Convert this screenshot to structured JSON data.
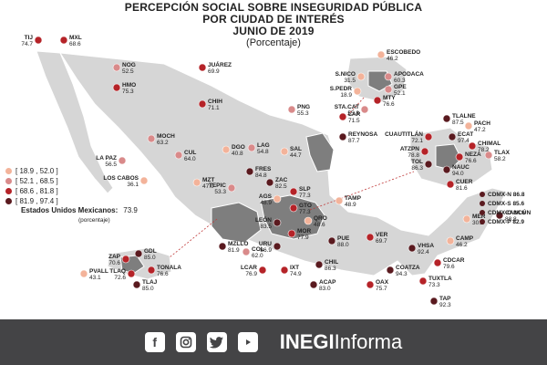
{
  "title": {
    "line1": "PERCEPCIÓN SOCIAL SOBRE INSEGURIDAD PÚBLICA",
    "line2": "POR CIUDAD DE INTERÉS",
    "line3": "JUNIO DE 2019",
    "line4": "(Porcentaje)"
  },
  "colors": {
    "c1": "#f3b39a",
    "c2": "#d98a8a",
    "c3": "#b52328",
    "c4": "#5a1a1f",
    "land": "#d6d6d6",
    "region": "#7e7e7e",
    "footer": "#444446"
  },
  "legend": [
    {
      "label": "[ 18.9 , 52.0 ]",
      "color": "#f3b39a"
    },
    {
      "label": "[ 52.1 , 68.5 ]",
      "color": "#d98a8a"
    },
    {
      "label": "[ 68.6 , 81.8 ]",
      "color": "#b52328"
    },
    {
      "label": "[ 81.9 , 97.4 ]",
      "color": "#5a1a1f"
    }
  ],
  "national": {
    "label": "Estados Unidos Mexicanos:",
    "value": "73.9",
    "unit": "(porcentaje)"
  },
  "cities": [
    {
      "name": "TIJ",
      "value": "74.7"
    },
    {
      "name": "MXL",
      "value": "68.6"
    },
    {
      "name": "NOG",
      "value": "52.5"
    },
    {
      "name": "HMO",
      "value": "75.3"
    },
    {
      "name": "JUÁREZ",
      "value": "69.9"
    },
    {
      "name": "CHIH",
      "value": "71.1"
    },
    {
      "name": "MOCH",
      "value": "63.2"
    },
    {
      "name": "LA PAZ",
      "value": "56.5"
    },
    {
      "name": "LOS CABOS",
      "value": "36.1"
    },
    {
      "name": "CUL",
      "value": "64.0"
    },
    {
      "name": "MZT",
      "value": "47.0"
    },
    {
      "name": "DGO",
      "value": "40.8"
    },
    {
      "name": "LAG",
      "value": "54.8"
    },
    {
      "name": "SAL",
      "value": "44.7"
    },
    {
      "name": "PNG",
      "value": "55.3"
    },
    {
      "name": "LAR",
      "value": "71.5"
    },
    {
      "name": "REYNOSA",
      "value": "87.7"
    },
    {
      "name": "FRES",
      "value": "84.8"
    },
    {
      "name": "ZAC",
      "value": "82.5"
    },
    {
      "name": "AGS",
      "value": "48.9"
    },
    {
      "name": "TEPIC",
      "value": "53.3"
    },
    {
      "name": "SLP",
      "value": "77.3"
    },
    {
      "name": "GTO",
      "value": "77.3"
    },
    {
      "name": "LEÓN",
      "value": "83.5"
    },
    {
      "name": "QRO",
      "value": "48.6"
    },
    {
      "name": "MOR",
      "value": "77.9"
    },
    {
      "name": "URU",
      "value": "86.9"
    },
    {
      "name": "TAMP",
      "value": "48.9"
    },
    {
      "name": "MZLLO",
      "value": "81.9"
    },
    {
      "name": "COL",
      "value": "62.0"
    },
    {
      "name": "LCAR",
      "value": "76.9"
    },
    {
      "name": "IXT",
      "value": "74.9"
    },
    {
      "name": "ACAP",
      "value": "83.0"
    },
    {
      "name": "CHIL",
      "value": "86.3"
    },
    {
      "name": "PUE",
      "value": "88.0"
    },
    {
      "name": "VER",
      "value": "69.7"
    },
    {
      "name": "OAX",
      "value": "75.7"
    },
    {
      "name": "COATZA",
      "value": "94.3"
    },
    {
      "name": "VHSA",
      "value": "92.4"
    },
    {
      "name": "CDCAR",
      "value": "79.6"
    },
    {
      "name": "TUXTLA",
      "value": "73.3"
    },
    {
      "name": "TAP",
      "value": "92.3"
    },
    {
      "name": "CAMP",
      "value": "46.2"
    },
    {
      "name": "MER",
      "value": "30.2"
    },
    {
      "name": "CANCÚN",
      "value": "88.8"
    },
    {
      "name": "PVALL",
      "value": "43.1"
    },
    {
      "name": "ZAP",
      "value": "70.6"
    },
    {
      "name": "GDL",
      "value": "85.0"
    },
    {
      "name": "TLAQ",
      "value": "72.6"
    },
    {
      "name": "TONALA",
      "value": "76.6"
    },
    {
      "name": "TLAJ",
      "value": "85.0"
    },
    {
      "name": "ESCOBEDO",
      "value": "46.2"
    },
    {
      "name": "S.NICO",
      "value": "31.5"
    },
    {
      "name": "APODACA",
      "value": "60.3"
    },
    {
      "name": "GPE",
      "value": "52.1"
    },
    {
      "name": "S.PEDR",
      "value": "18.9"
    },
    {
      "name": "MTY",
      "value": "76.6"
    },
    {
      "name": "STA.CAT",
      "value": "55.3"
    },
    {
      "name": "TLALNE",
      "value": "87.5"
    },
    {
      "name": "PACH",
      "value": "47.2"
    },
    {
      "name": "CUAUTITLÁN",
      "value": "72.1"
    },
    {
      "name": "ECAT",
      "value": "97.4"
    },
    {
      "name": "ATZPN",
      "value": "78.8"
    },
    {
      "name": "CHIMAL",
      "value": "78.2"
    },
    {
      "name": "NEZA",
      "value": "76.6"
    },
    {
      "name": "TOL",
      "value": "86.3"
    },
    {
      "name": "NAUC",
      "value": "94.0"
    },
    {
      "name": "TLAX",
      "value": "58.2"
    },
    {
      "name": "CUER",
      "value": "81.6"
    }
  ],
  "cdmx": [
    {
      "label": "CDMX-N 86.8"
    },
    {
      "label": "CDMX-S 85.6"
    },
    {
      "label": "CDMX-O 84.6"
    },
    {
      "label": "CDMX-P 82.9"
    }
  ],
  "footer": {
    "brand_bold": "INEGI",
    "brand_light": "Informa",
    "icons": [
      "facebook-icon",
      "instagram-icon",
      "twitter-icon",
      "youtube-icon"
    ]
  }
}
